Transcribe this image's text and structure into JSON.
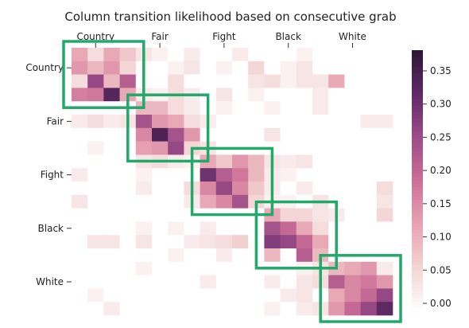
{
  "chart_data": {
    "type": "heatmap",
    "title": "Column transition likelihood based on consecutive grab",
    "x_tick_labels": [
      "Country",
      "Fair",
      "Fight",
      "Black",
      "White"
    ],
    "y_tick_labels": [
      "Country",
      "Fair",
      "Fight",
      "Black",
      "White"
    ],
    "n_rows": 20,
    "n_cols": 20,
    "values": [
      [
        0.12,
        0.05,
        0.12,
        0.08,
        0.04,
        0.02,
        0.0,
        0.03,
        0.0,
        0.0,
        0.03,
        0.0,
        0.0,
        0.0,
        0.02,
        0.0,
        0.0,
        0.0,
        0.0,
        0.0
      ],
      [
        0.14,
        0.1,
        0.14,
        0.06,
        0.0,
        0.0,
        0.02,
        0.04,
        0.0,
        0.02,
        0.0,
        0.06,
        0.0,
        0.02,
        0.04,
        0.0,
        0.0,
        0.0,
        0.0,
        0.0
      ],
      [
        0.05,
        0.26,
        0.1,
        0.22,
        0.0,
        0.0,
        0.05,
        0.0,
        0.0,
        0.0,
        0.0,
        0.04,
        0.05,
        0.02,
        0.04,
        0.04,
        0.12,
        0.0,
        0.0,
        0.0
      ],
      [
        0.17,
        0.18,
        0.33,
        0.12,
        0.03,
        0.02,
        0.05,
        0.03,
        0.0,
        0.04,
        0.0,
        0.02,
        0.0,
        0.0,
        0.0,
        0.03,
        0.0,
        0.0,
        0.0,
        0.0
      ],
      [
        0.0,
        0.0,
        0.0,
        0.0,
        0.1,
        0.1,
        0.05,
        0.03,
        0.0,
        0.02,
        0.0,
        0.0,
        0.02,
        0.0,
        0.0,
        0.03,
        0.0,
        0.0,
        0.0,
        0.0
      ],
      [
        0.03,
        0.05,
        0.03,
        0.04,
        0.24,
        0.14,
        0.12,
        0.05,
        0.03,
        0.0,
        0.0,
        0.0,
        0.0,
        0.0,
        0.0,
        0.0,
        0.0,
        0.0,
        0.03,
        0.03
      ],
      [
        0.0,
        0.0,
        0.0,
        0.0,
        0.16,
        0.34,
        0.24,
        0.14,
        0.0,
        0.0,
        0.0,
        0.0,
        0.04,
        0.0,
        0.0,
        0.0,
        0.0,
        0.0,
        0.0,
        0.0
      ],
      [
        0.0,
        0.02,
        0.0,
        0.0,
        0.13,
        0.14,
        0.26,
        0.06,
        0.04,
        0.0,
        0.0,
        0.0,
        0.0,
        0.0,
        0.0,
        0.0,
        0.0,
        0.0,
        0.0,
        0.0
      ],
      [
        0.0,
        0.0,
        0.0,
        0.0,
        0.04,
        0.05,
        0.03,
        0.02,
        0.12,
        0.08,
        0.14,
        0.1,
        0.04,
        0.03,
        0.04,
        0.0,
        0.0,
        0.0,
        0.0,
        0.0
      ],
      [
        0.03,
        0.0,
        0.0,
        0.0,
        0.02,
        0.0,
        0.0,
        0.0,
        0.3,
        0.22,
        0.18,
        0.1,
        0.03,
        0.02,
        0.0,
        0.0,
        0.0,
        0.0,
        0.0,
        0.0
      ],
      [
        0.0,
        0.0,
        0.0,
        0.0,
        0.03,
        0.0,
        0.0,
        0.05,
        0.16,
        0.26,
        0.16,
        0.08,
        0.03,
        0.0,
        0.03,
        0.0,
        0.0,
        0.0,
        0.0,
        0.05
      ],
      [
        0.04,
        0.0,
        0.0,
        0.0,
        0.0,
        0.0,
        0.0,
        0.03,
        0.12,
        0.16,
        0.24,
        0.06,
        0.02,
        0.02,
        0.0,
        0.04,
        0.0,
        0.0,
        0.0,
        0.04
      ],
      [
        0.0,
        0.0,
        0.0,
        0.0,
        0.0,
        0.0,
        0.0,
        0.0,
        0.0,
        0.0,
        0.0,
        0.0,
        0.12,
        0.06,
        0.06,
        0.04,
        0.03,
        0.0,
        0.0,
        0.06
      ],
      [
        0.0,
        0.0,
        0.0,
        0.0,
        0.02,
        0.0,
        0.02,
        0.0,
        0.03,
        0.0,
        0.0,
        0.0,
        0.24,
        0.2,
        0.12,
        0.05,
        0.0,
        0.0,
        0.0,
        0.0
      ],
      [
        0.0,
        0.04,
        0.04,
        0.0,
        0.04,
        0.0,
        0.0,
        0.03,
        0.04,
        0.05,
        0.07,
        0.0,
        0.28,
        0.26,
        0.2,
        0.12,
        0.0,
        0.0,
        0.0,
        0.0
      ],
      [
        0.0,
        0.0,
        0.0,
        0.0,
        0.0,
        0.0,
        0.02,
        0.0,
        0.0,
        0.03,
        0.0,
        0.0,
        0.1,
        0.0,
        0.22,
        0.1,
        0.0,
        0.0,
        0.0,
        0.0
      ],
      [
        0.0,
        0.0,
        0.0,
        0.0,
        0.02,
        0.0,
        0.0,
        0.0,
        0.0,
        0.0,
        0.0,
        0.0,
        0.0,
        0.0,
        0.02,
        0.04,
        0.1,
        0.12,
        0.14,
        0.03
      ],
      [
        0.0,
        0.0,
        0.0,
        0.0,
        0.0,
        0.0,
        0.0,
        0.0,
        0.03,
        0.0,
        0.0,
        0.0,
        0.03,
        0.0,
        0.04,
        0.05,
        0.22,
        0.16,
        0.18,
        0.14
      ],
      [
        0.0,
        0.02,
        0.0,
        0.0,
        0.0,
        0.0,
        0.0,
        0.0,
        0.0,
        0.0,
        0.0,
        0.0,
        0.0,
        0.03,
        0.04,
        0.0,
        0.12,
        0.16,
        0.2,
        0.26
      ],
      [
        0.0,
        0.0,
        0.03,
        0.0,
        0.0,
        0.0,
        0.0,
        0.0,
        0.0,
        0.0,
        0.0,
        0.0,
        0.02,
        0.0,
        0.03,
        0.04,
        0.14,
        0.2,
        0.26,
        0.32
      ]
    ],
    "colorbar": {
      "min": 0,
      "max": 0.38,
      "ticks": [
        0.0,
        0.05,
        0.1,
        0.15,
        0.2,
        0.25,
        0.3,
        0.35
      ],
      "tick_labels": [
        "0.00",
        "0.05",
        "0.10",
        "0.15",
        "0.20",
        "0.25",
        "0.30",
        "0.35"
      ]
    },
    "highlight_blocks": [
      {
        "label": "Country",
        "start": 0,
        "size": 4
      },
      {
        "label": "Fair",
        "start": 4,
        "size": 4
      },
      {
        "label": "Fight",
        "start": 8,
        "size": 4
      },
      {
        "label": "Black",
        "start": 12,
        "size": 4
      },
      {
        "label": "White",
        "start": 16,
        "size": 4
      }
    ],
    "highlight_color": "#22a86b",
    "colormap": [
      "#ffffff",
      "#f3d4d4",
      "#e7a3b2",
      "#cc6f98",
      "#9b4c88",
      "#5f2a66",
      "#2b1735"
    ]
  }
}
